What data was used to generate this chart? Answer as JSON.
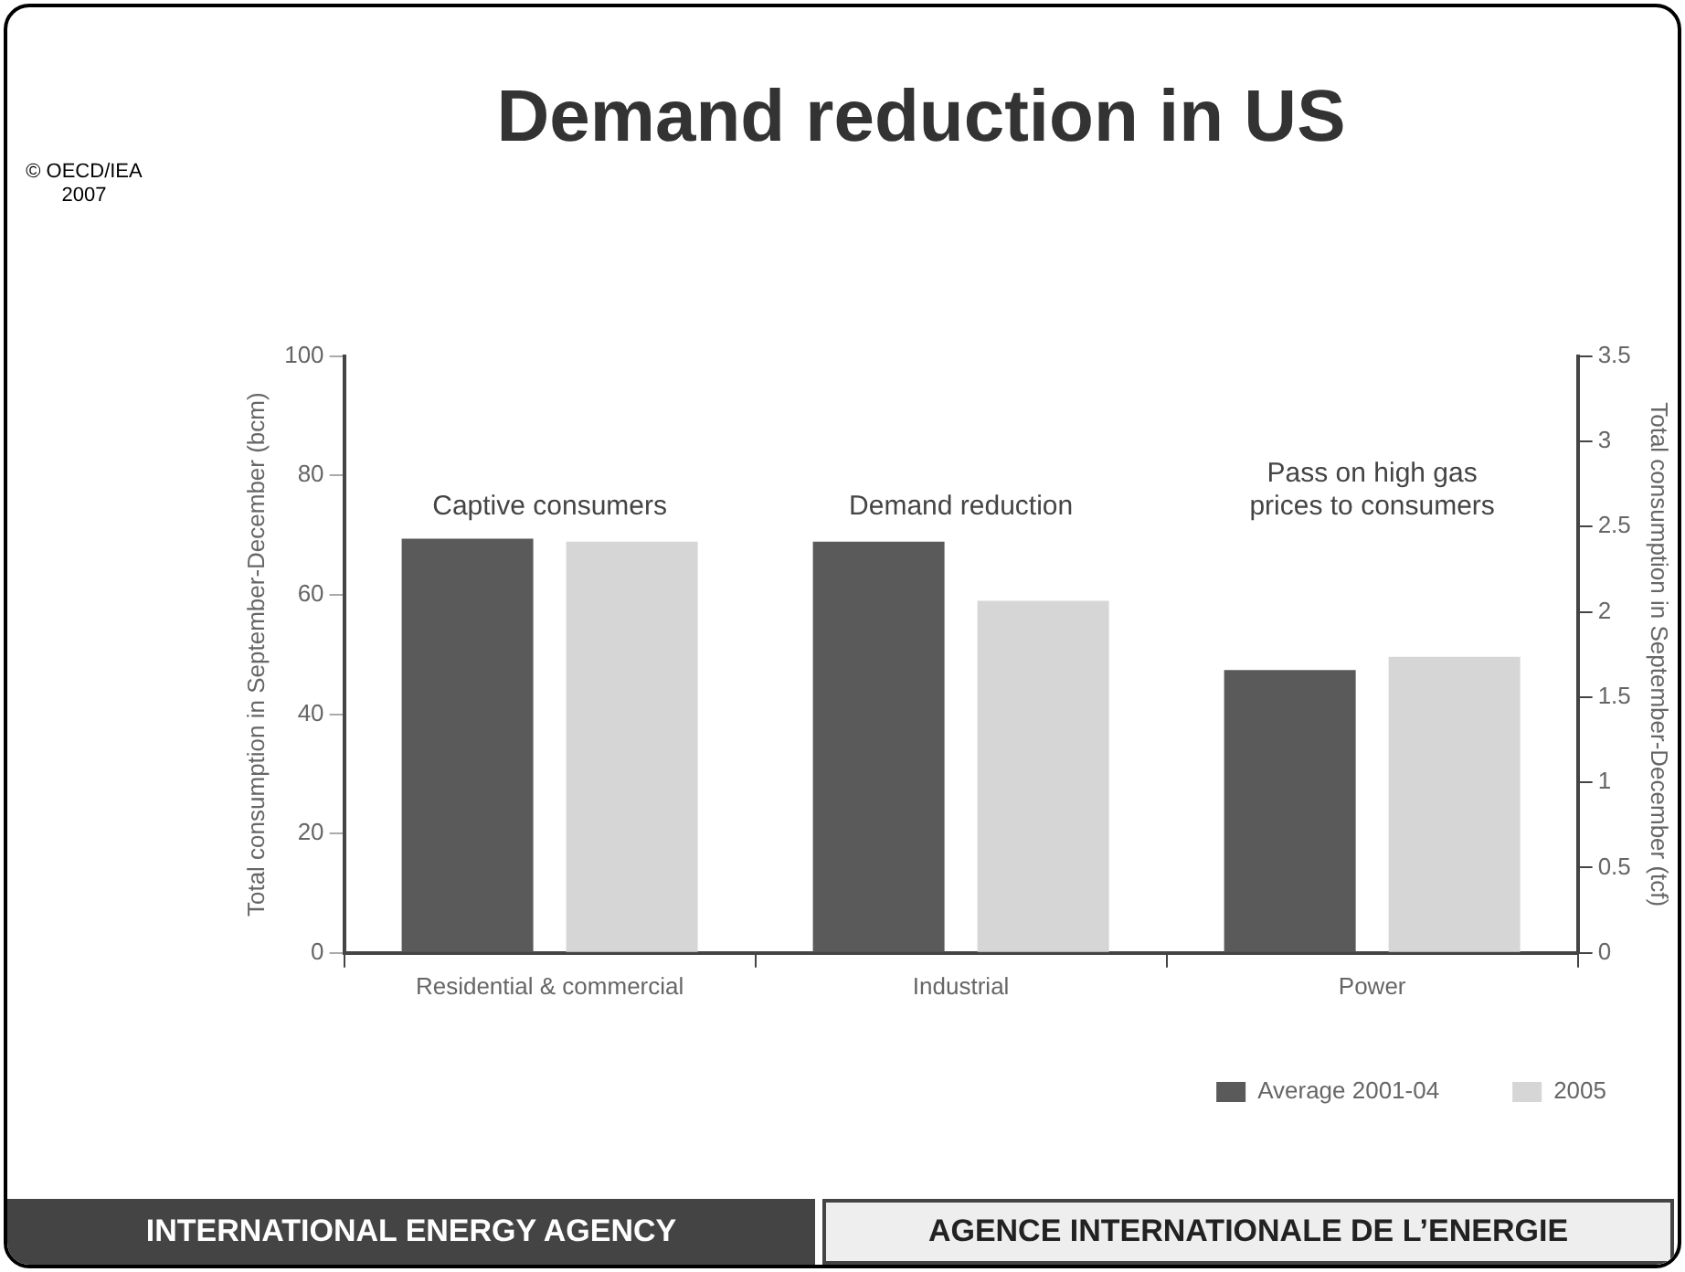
{
  "chart_data": {
    "type": "bar",
    "title": "Demand reduction in US",
    "ylabel": "Total consumption in September-December (bcm)",
    "y2label": "Total consumption in September-December (tcf)",
    "categories": [
      "Residential & commercial",
      "Industrial",
      "Power"
    ],
    "series": [
      {
        "name": "Average 2001-04",
        "color": "#5a5a5a",
        "values": [
          69.4,
          68.9,
          47.4
        ]
      },
      {
        "name": "2005",
        "color": "#d6d6d6",
        "values": [
          68.9,
          59.0,
          49.6
        ]
      }
    ],
    "ylim": [
      0,
      100
    ],
    "yticks": [
      0,
      20,
      40,
      60,
      80,
      100
    ],
    "y2lim": [
      0,
      3.5
    ],
    "y2ticks": [
      0,
      0.5,
      1,
      1.5,
      2,
      2.5,
      3,
      3.5
    ],
    "legend": "bottom right",
    "grid": false,
    "annotations": [
      "© OECD/IEA 2007",
      "INTERNATIONAL ENERGY AGENCY",
      "AGENCE INTERNATIONALE DE L’ENERGIE",
      "Captive consumers",
      "Demand reduction",
      "Pass on high gas prices to consumers"
    ]
  }
}
